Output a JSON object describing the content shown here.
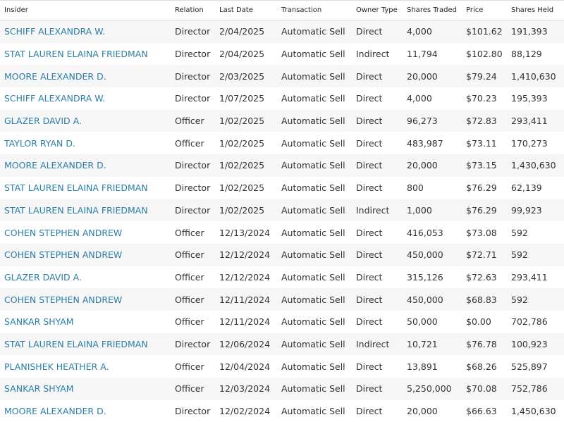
{
  "table": {
    "headers": [
      "Insider",
      "Relation",
      "Last Date",
      "Transaction",
      "Owner Type",
      "Shares Traded",
      "Price",
      "Shares Held"
    ],
    "rows": [
      [
        "SCHIFF ALEXANDRA W.",
        "Director",
        "2/04/2025",
        "Automatic Sell",
        "Direct",
        "4,000",
        "$101.62",
        "191,393"
      ],
      [
        "STAT LAUREN ELAINA FRIEDMAN",
        "Director",
        "2/04/2025",
        "Automatic Sell",
        "Indirect",
        "11,794",
        "$102.80",
        "88,129"
      ],
      [
        "MOORE ALEXANDER D.",
        "Director",
        "2/03/2025",
        "Automatic Sell",
        "Direct",
        "20,000",
        "$79.24",
        "1,410,630"
      ],
      [
        "SCHIFF ALEXANDRA W.",
        "Director",
        "1/07/2025",
        "Automatic Sell",
        "Direct",
        "4,000",
        "$70.23",
        "195,393"
      ],
      [
        "GLAZER DAVID A.",
        "Officer",
        "1/02/2025",
        "Automatic Sell",
        "Direct",
        "96,273",
        "$72.83",
        "293,411"
      ],
      [
        "TAYLOR RYAN D.",
        "Officer",
        "1/02/2025",
        "Automatic Sell",
        "Direct",
        "483,987",
        "$73.11",
        "170,273"
      ],
      [
        "MOORE ALEXANDER D.",
        "Director",
        "1/02/2025",
        "Automatic Sell",
        "Direct",
        "20,000",
        "$73.15",
        "1,430,630"
      ],
      [
        "STAT LAUREN ELAINA FRIEDMAN",
        "Director",
        "1/02/2025",
        "Automatic Sell",
        "Direct",
        "800",
        "$76.29",
        "62,139"
      ],
      [
        "STAT LAUREN ELAINA FRIEDMAN",
        "Director",
        "1/02/2025",
        "Automatic Sell",
        "Indirect",
        "1,000",
        "$76.29",
        "99,923"
      ],
      [
        "COHEN STEPHEN ANDREW",
        "Officer",
        "12/13/2024",
        "Automatic Sell",
        "Direct",
        "416,053",
        "$73.08",
        "592"
      ],
      [
        "COHEN STEPHEN ANDREW",
        "Officer",
        "12/12/2024",
        "Automatic Sell",
        "Direct",
        "450,000",
        "$72.71",
        "592"
      ],
      [
        "GLAZER DAVID A.",
        "Officer",
        "12/12/2024",
        "Automatic Sell",
        "Direct",
        "315,126",
        "$72.63",
        "293,411"
      ],
      [
        "COHEN STEPHEN ANDREW",
        "Officer",
        "12/11/2024",
        "Automatic Sell",
        "Direct",
        "450,000",
        "$68.83",
        "592"
      ],
      [
        "SANKAR SHYAM",
        "Officer",
        "12/11/2024",
        "Automatic Sell",
        "Direct",
        "50,000",
        "$0.00",
        "702,786"
      ],
      [
        "STAT LAUREN ELAINA FRIEDMAN",
        "Director",
        "12/06/2024",
        "Automatic Sell",
        "Indirect",
        "10,721",
        "$76.78",
        "100,923"
      ],
      [
        "PLANISHEK HEATHER A.",
        "Officer",
        "12/04/2024",
        "Automatic Sell",
        "Direct",
        "13,891",
        "$68.26",
        "525,897"
      ],
      [
        "SANKAR SHYAM",
        "Officer",
        "12/03/2024",
        "Automatic Sell",
        "Direct",
        "5,250,000",
        "$70.08",
        "752,786"
      ],
      [
        "MOORE ALEXANDER D.",
        "Director",
        "12/02/2024",
        "Automatic Sell",
        "Direct",
        "20,000",
        "$66.63",
        "1,450,630"
      ]
    ]
  }
}
